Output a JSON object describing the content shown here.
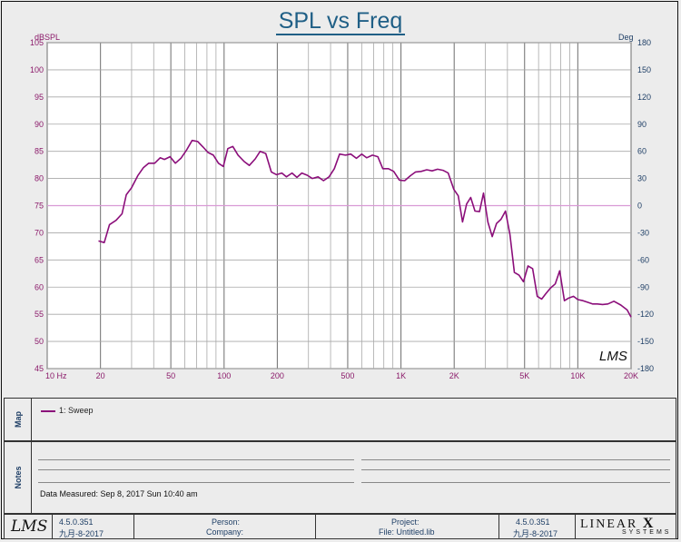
{
  "chart_data": {
    "type": "line",
    "title": "SPL vs Freq",
    "left_unit": "dBSPL",
    "right_unit": "Deg",
    "x_scale": "log",
    "xlim": [
      10,
      20000
    ],
    "ylim": [
      45,
      105
    ],
    "y2lim": [
      -180,
      180
    ],
    "grid": true,
    "x_tick_labels": [
      {
        "f": 10,
        "label": "10  Hz"
      },
      {
        "f": 20,
        "label": "20"
      },
      {
        "f": 50,
        "label": "50"
      },
      {
        "f": 100,
        "label": "100"
      },
      {
        "f": 200,
        "label": "200"
      },
      {
        "f": 500,
        "label": "500"
      },
      {
        "f": 1000,
        "label": "1K"
      },
      {
        "f": 2000,
        "label": "2K"
      },
      {
        "f": 5000,
        "label": "5K"
      },
      {
        "f": 10000,
        "label": "10K"
      },
      {
        "f": 20000,
        "label": "20K"
      }
    ],
    "y_ticks": [
      105,
      100,
      95,
      90,
      85,
      80,
      75,
      70,
      65,
      60,
      55,
      50,
      45
    ],
    "y2_ticks": [
      180,
      150,
      120,
      90,
      60,
      30,
      0,
      -30,
      -60,
      -90,
      -120,
      -150,
      -180
    ],
    "reference_line": 75,
    "series": [
      {
        "name": "1: Sweep",
        "color": "#8b0e7a",
        "points": [
          [
            19.5,
            68.5
          ],
          [
            21,
            68.2
          ],
          [
            22.5,
            71.5
          ],
          [
            24.5,
            72.3
          ],
          [
            26.5,
            73.5
          ],
          [
            28,
            77
          ],
          [
            30,
            78.3
          ],
          [
            32.5,
            80.5
          ],
          [
            35,
            82
          ],
          [
            37.5,
            82.8
          ],
          [
            40.5,
            82.8
          ],
          [
            43.5,
            83.8
          ],
          [
            46,
            83.5
          ],
          [
            49.5,
            84
          ],
          [
            53,
            82.8
          ],
          [
            57,
            83.7
          ],
          [
            61.5,
            85.3
          ],
          [
            66,
            87
          ],
          [
            71,
            86.8
          ],
          [
            76,
            85.8
          ],
          [
            81,
            84.8
          ],
          [
            87,
            84.3
          ],
          [
            93,
            82.8
          ],
          [
            99,
            82.2
          ],
          [
            105,
            85.5
          ],
          [
            112,
            85.9
          ],
          [
            120,
            84.3
          ],
          [
            130,
            83.1
          ],
          [
            139,
            82.4
          ],
          [
            150,
            83.6
          ],
          [
            160,
            85
          ],
          [
            172,
            84.6
          ],
          [
            185,
            81.2
          ],
          [
            198,
            80.7
          ],
          [
            212,
            81
          ],
          [
            225,
            80.3
          ],
          [
            242,
            81
          ],
          [
            258,
            80.2
          ],
          [
            275,
            81
          ],
          [
            295,
            80.6
          ],
          [
            315,
            80
          ],
          [
            340,
            80.3
          ],
          [
            365,
            79.6
          ],
          [
            392,
            80.3
          ],
          [
            420,
            81.8
          ],
          [
            450,
            84.5
          ],
          [
            485,
            84.3
          ],
          [
            520,
            84.5
          ],
          [
            560,
            83.7
          ],
          [
            600,
            84.5
          ],
          [
            640,
            83.8
          ],
          [
            690,
            84.3
          ],
          [
            740,
            84
          ],
          [
            790,
            81.8
          ],
          [
            850,
            81.8
          ],
          [
            910,
            81.3
          ],
          [
            980,
            79.7
          ],
          [
            1050,
            79.6
          ],
          [
            1130,
            80.5
          ],
          [
            1210,
            81.2
          ],
          [
            1300,
            81.3
          ],
          [
            1400,
            81.6
          ],
          [
            1500,
            81.4
          ],
          [
            1610,
            81.7
          ],
          [
            1730,
            81.5
          ],
          [
            1850,
            81
          ],
          [
            1990,
            78
          ],
          [
            2110,
            76.8
          ],
          [
            2230,
            72
          ],
          [
            2350,
            75.3
          ],
          [
            2480,
            76.5
          ],
          [
            2620,
            74
          ],
          [
            2780,
            73.9
          ],
          [
            2930,
            77.3
          ],
          [
            3100,
            72
          ],
          [
            3280,
            69.3
          ],
          [
            3470,
            71.7
          ],
          [
            3680,
            72.5
          ],
          [
            3900,
            74
          ],
          [
            4130,
            69.7
          ],
          [
            4380,
            62.7
          ],
          [
            4650,
            62.2
          ],
          [
            4930,
            61
          ],
          [
            5230,
            63.9
          ],
          [
            5550,
            63.4
          ],
          [
            5900,
            58.3
          ],
          [
            6250,
            57.8
          ],
          [
            6600,
            58.8
          ],
          [
            7000,
            59.8
          ],
          [
            7450,
            60.6
          ],
          [
            7900,
            63
          ],
          [
            8400,
            57.5
          ],
          [
            8900,
            58
          ],
          [
            9450,
            58.3
          ],
          [
            10000,
            57.7
          ],
          [
            10700,
            57.5
          ],
          [
            11400,
            57.2
          ],
          [
            12100,
            56.9
          ],
          [
            12900,
            56.9
          ],
          [
            13800,
            56.8
          ],
          [
            14800,
            56.9
          ],
          [
            16000,
            57.4
          ],
          [
            17500,
            56.7
          ],
          [
            19000,
            55.8
          ],
          [
            20000,
            54.5
          ]
        ]
      }
    ],
    "watermark": "LMS"
  },
  "panels": {
    "map_label": "Map",
    "legend_entry": "1: Sweep",
    "notes_label": "Notes",
    "data_measured": "Data Measured: Sep 8, 2017 Sun 10:40 am"
  },
  "footer": {
    "logo": "LMS",
    "version_left": "4.5.0.351",
    "date_left": "九月-8-2017",
    "person_label": "Person:",
    "company_label": "Company:",
    "project_label": "Project:",
    "file_label": "File: Untitled.lib",
    "version_right": "4.5.0.351",
    "date_right": "九月-8-2017",
    "brand_main": "LINEAR",
    "brand_x": "X",
    "brand_sub": "SYSTEMS"
  }
}
